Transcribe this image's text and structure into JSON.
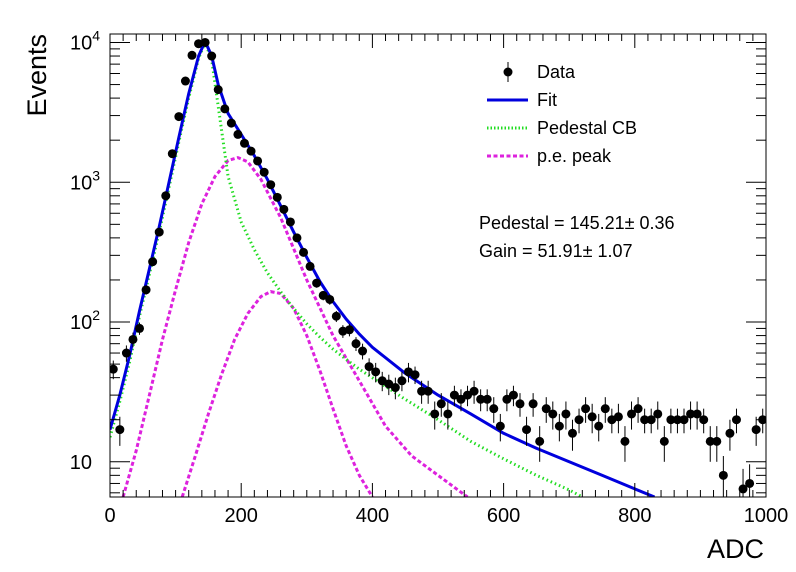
{
  "chart_data": {
    "type": "scatter",
    "title": "",
    "xlabel": "ADC",
    "ylabel": "Events",
    "xlim": [
      0,
      1000
    ],
    "ylim": [
      5.6,
      11500
    ],
    "yscale": "log",
    "grid": false,
    "legend_position": "top-right",
    "x_ticks": [
      {
        "value": 0,
        "label": "0"
      },
      {
        "value": 200,
        "label": "200"
      },
      {
        "value": 400,
        "label": "400"
      },
      {
        "value": 600,
        "label": "600"
      },
      {
        "value": 800,
        "label": "800"
      },
      {
        "value": 1000,
        "label": "1000"
      }
    ],
    "y_ticks": [
      {
        "value": 10,
        "base": "10",
        "exp": ""
      },
      {
        "value": 100,
        "base": "10",
        "exp": "2"
      },
      {
        "value": 1000,
        "base": "10",
        "exp": "3"
      },
      {
        "value": 10000,
        "base": "10",
        "exp": "4"
      }
    ],
    "legend": [
      {
        "label": "Data",
        "key": "data"
      },
      {
        "label": "Fit",
        "key": "fit"
      },
      {
        "label": "Pedestal CB",
        "key": "pedestal"
      },
      {
        "label": "p.e. peak",
        "key": "pe"
      }
    ],
    "annotations": [
      "Pedestal = 145.21± 0.36",
      "Gain = 51.91± 1.07"
    ],
    "colors": {
      "data": "#000000",
      "fit": "#0000dd",
      "pedestal": "#22dd22",
      "pe": "#dd22dd"
    },
    "series": [
      {
        "name": "Data",
        "style": "points-with-errors",
        "x": [
          5,
          15,
          25,
          35,
          45,
          55,
          65,
          75,
          85,
          95,
          105,
          115,
          125,
          135,
          145,
          155,
          165,
          175,
          185,
          195,
          205,
          215,
          225,
          235,
          245,
          255,
          265,
          275,
          285,
          295,
          305,
          315,
          325,
          335,
          345,
          355,
          365,
          375,
          385,
          395,
          405,
          415,
          425,
          435,
          445,
          455,
          465,
          475,
          485,
          495,
          505,
          515,
          525,
          535,
          545,
          555,
          565,
          575,
          585,
          595,
          605,
          615,
          625,
          635,
          645,
          655,
          665,
          675,
          685,
          695,
          705,
          715,
          725,
          735,
          745,
          755,
          765,
          775,
          785,
          795,
          805,
          815,
          825,
          835,
          845,
          855,
          865,
          875,
          885,
          895,
          905,
          915,
          925,
          935,
          945,
          955,
          965,
          975,
          985,
          995
        ],
        "y": [
          46,
          17,
          60,
          75,
          90,
          170,
          270,
          440,
          800,
          1600,
          2950,
          5300,
          8100,
          9800,
          10000,
          8000,
          4600,
          3350,
          2650,
          2200,
          1900,
          1670,
          1420,
          1180,
          960,
          780,
          640,
          520,
          400,
          315,
          250,
          190,
          155,
          145,
          110,
          86,
          88,
          70,
          62,
          48,
          44,
          38,
          36,
          34,
          38,
          44,
          42,
          32,
          32,
          22,
          26,
          22,
          30,
          28,
          30,
          32,
          28,
          28,
          24,
          18,
          28,
          30,
          26,
          17,
          26,
          14,
          24,
          22,
          18,
          22,
          16,
          20,
          24,
          21,
          18,
          24,
          20,
          21,
          14,
          22,
          24,
          20,
          20,
          22,
          14,
          20,
          20,
          20,
          22,
          22,
          20,
          14,
          14,
          8,
          16,
          20,
          6.4,
          7.0,
          17,
          20
        ],
        "y_err": [
          7,
          4,
          8,
          9,
          9,
          13,
          16,
          21,
          28,
          40,
          54,
          73,
          90,
          99,
          100,
          89,
          68,
          58,
          51,
          47,
          44,
          41,
          38,
          34,
          31,
          28,
          25,
          23,
          20,
          18,
          16,
          14,
          12,
          12,
          10,
          9,
          9,
          8,
          8,
          7,
          7,
          6,
          6,
          6,
          6,
          7,
          6,
          6,
          6,
          5,
          5,
          5,
          5,
          5,
          5,
          6,
          5,
          5,
          5,
          4,
          5,
          5,
          5,
          4,
          5,
          4,
          5,
          5,
          4,
          5,
          4,
          4,
          5,
          5,
          4,
          5,
          4,
          5,
          4,
          5,
          5,
          4,
          4,
          5,
          4,
          4,
          4,
          4,
          5,
          5,
          4,
          4,
          4,
          3,
          4,
          4,
          2.5,
          2.6,
          4,
          4
        ]
      },
      {
        "name": "Fit",
        "style": "line",
        "x": [
          0,
          15,
          30,
          45,
          60,
          75,
          90,
          105,
          120,
          135,
          145,
          155,
          165,
          180,
          200,
          220,
          240,
          260,
          280,
          300,
          320,
          340,
          360,
          380,
          400,
          450,
          500,
          550,
          600,
          650,
          700,
          750,
          800,
          830
        ],
        "y": [
          17,
          30,
          58,
          120,
          240,
          480,
          1000,
          2100,
          4300,
          8000,
          10200,
          8000,
          5000,
          3100,
          2200,
          1550,
          1050,
          680,
          440,
          290,
          195,
          140,
          105,
          82,
          66,
          43,
          30,
          22,
          16,
          12.5,
          10,
          8,
          6.4,
          5.6
        ]
      },
      {
        "name": "Pedestal CB",
        "style": "dotted",
        "x": [
          0,
          15,
          30,
          45,
          60,
          75,
          90,
          105,
          120,
          135,
          145,
          155,
          165,
          180,
          200,
          220,
          240,
          260,
          280,
          300,
          320,
          340,
          360,
          380,
          400,
          450,
          500,
          550,
          600,
          650,
          700,
          720
        ],
        "y": [
          15,
          27,
          52,
          110,
          220,
          440,
          920,
          1950,
          4000,
          7700,
          10000,
          7500,
          3500,
          1100,
          520,
          330,
          225,
          165,
          125,
          97,
          78,
          64,
          54,
          46,
          40,
          28,
          20,
          14,
          10.5,
          8,
          6.3,
          5.6
        ]
      },
      {
        "name": "p.e. peak",
        "style": "dashed",
        "x": [
          20,
          40,
          60,
          80,
          100,
          120,
          140,
          160,
          180,
          195,
          210,
          230,
          260,
          300,
          340,
          380,
          420,
          460,
          500,
          545
        ],
        "y": [
          5.6,
          12,
          30,
          75,
          170,
          370,
          700,
          1100,
          1430,
          1500,
          1400,
          1050,
          560,
          200,
          80,
          38,
          18,
          11,
          8,
          5.6
        ]
      },
      {
        "name": "p.e. peak (2nd)",
        "style": "dashed",
        "x": [
          110,
          130,
          150,
          170,
          190,
          210,
          230,
          245,
          260,
          280,
          300,
          320,
          340,
          360,
          380,
          400
        ],
        "y": [
          5.6,
          11,
          22,
          42,
          75,
          115,
          152,
          165,
          160,
          125,
          80,
          45,
          24,
          13,
          8,
          5.6
        ]
      }
    ]
  }
}
